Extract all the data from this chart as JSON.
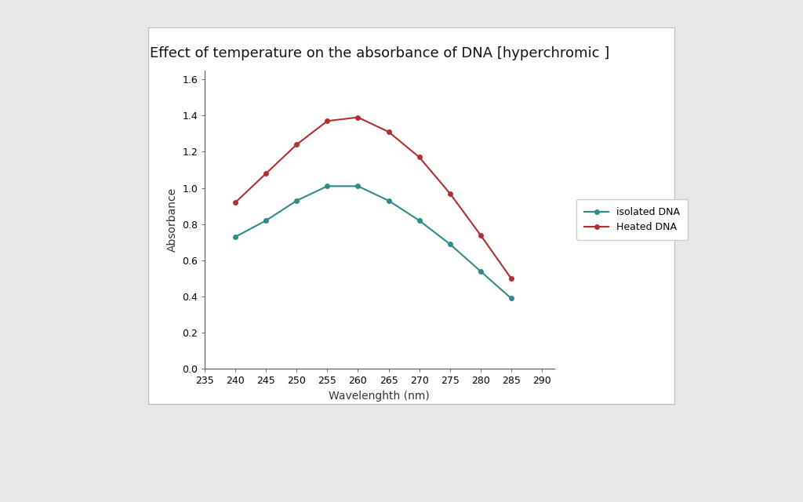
{
  "title": "Effect of temperature on the absorbance of DNA [hyperchromic ]",
  "xlabel": "Wavelenghth (nm)",
  "ylabel": "Absorbance",
  "x_values": [
    240,
    245,
    250,
    255,
    260,
    265,
    270,
    275,
    280,
    285
  ],
  "isolated_dna": [
    0.73,
    0.82,
    0.93,
    1.01,
    1.01,
    0.93,
    0.82,
    0.69,
    0.54,
    0.39
  ],
  "heated_dna": [
    0.92,
    1.08,
    1.24,
    1.37,
    1.39,
    1.31,
    1.17,
    0.97,
    0.74,
    0.5
  ],
  "isolated_color": "#2E8B8B",
  "heated_color": "#B03030",
  "isolated_label": "isolated DNA",
  "heated_label": "Heated DNA",
  "xlim": [
    235,
    292
  ],
  "ylim": [
    0,
    1.65
  ],
  "xticks": [
    235,
    240,
    245,
    250,
    255,
    260,
    265,
    270,
    275,
    280,
    285,
    290
  ],
  "yticks": [
    0,
    0.2,
    0.4,
    0.6,
    0.8,
    1.0,
    1.2,
    1.4,
    1.6
  ],
  "title_fontsize": 13,
  "label_fontsize": 10,
  "tick_fontsize": 9,
  "legend_fontsize": 9,
  "page_bg": "#e8e8e8",
  "panel_bg": "#ffffff",
  "plot_bg": "#ffffff"
}
